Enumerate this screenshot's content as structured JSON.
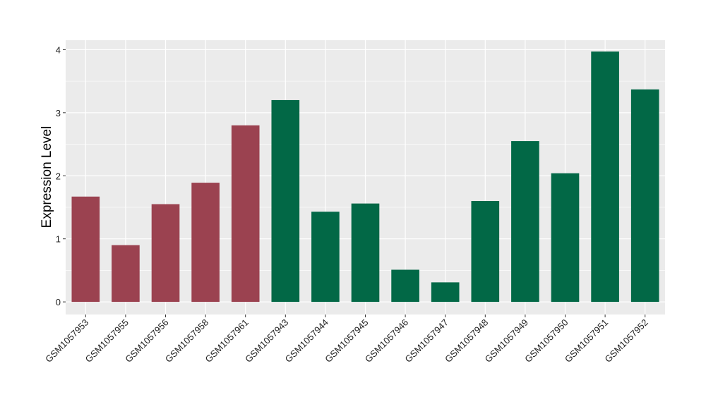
{
  "chart_data": {
    "type": "bar",
    "title": "",
    "xlabel": "",
    "ylabel": "Expression Level",
    "ylim": [
      -0.2,
      4.15
    ],
    "yticks": [
      0,
      1,
      2,
      3,
      4
    ],
    "grid": true,
    "categories": [
      "GSM1057953",
      "GSM1057955",
      "GSM1057956",
      "GSM1057958",
      "GSM1057961",
      "GSM1057943",
      "GSM1057944",
      "GSM1057945",
      "GSM1057946",
      "GSM1057947",
      "GSM1057948",
      "GSM1057949",
      "GSM1057950",
      "GSM1057951",
      "GSM1057952"
    ],
    "values": [
      1.67,
      0.9,
      1.55,
      1.89,
      2.8,
      3.2,
      1.43,
      1.56,
      0.51,
      0.31,
      1.6,
      2.55,
      2.04,
      3.97,
      3.37
    ],
    "bar_colors": [
      "#9b4250",
      "#9b4250",
      "#9b4250",
      "#9b4250",
      "#9b4250",
      "#026846",
      "#026846",
      "#026846",
      "#026846",
      "#026846",
      "#026846",
      "#026846",
      "#026846",
      "#026846",
      "#026846"
    ],
    "panel_background": "#ebebeb"
  }
}
